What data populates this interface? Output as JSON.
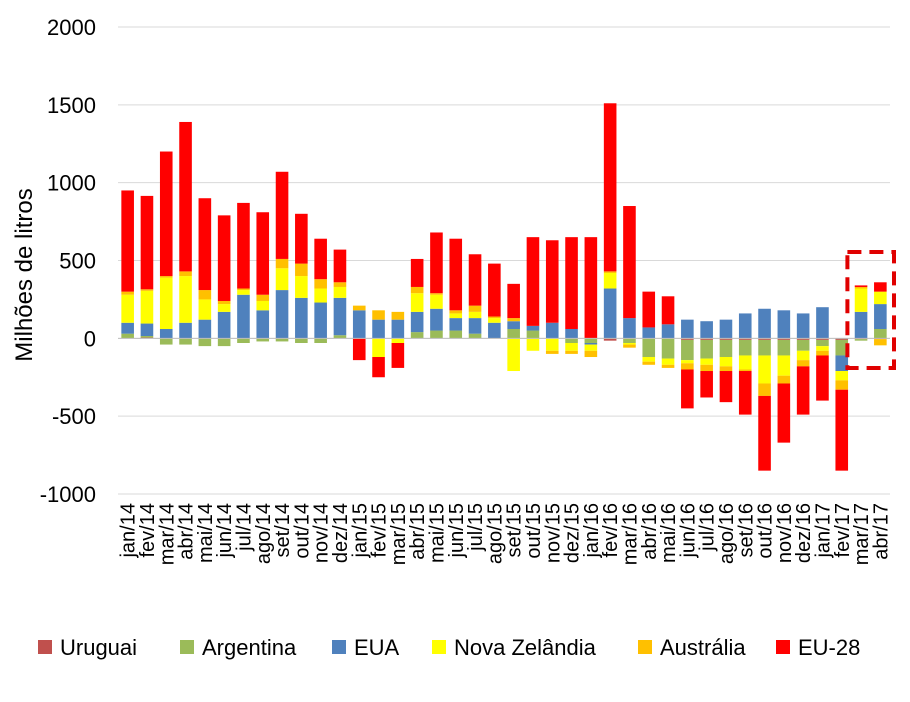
{
  "chart_data": {
    "type": "bar",
    "stacked": true,
    "ylabel": "Milhões de litros",
    "ylim": [
      -1000,
      2000
    ],
    "yticks": [
      2000,
      1500,
      1000,
      500,
      0,
      -500,
      -1000
    ],
    "grid": true,
    "legend_position": "bottom",
    "highlight": {
      "categories": [
        "mar/17",
        "abr/17"
      ],
      "style": "dashed-box",
      "color": "#e00000"
    },
    "categories": [
      "jan/14",
      "fev/14",
      "mar/14",
      "abr/14",
      "mai/14",
      "jun/14",
      "jul/14",
      "ago/14",
      "set/14",
      "out/14",
      "nov/14",
      "dez/14",
      "jan/15",
      "fev/15",
      "mar/15",
      "abr/15",
      "mai/15",
      "jun/15",
      "jul/15",
      "ago/15",
      "set/15",
      "out/15",
      "nov/15",
      "dez/15",
      "jan/16",
      "fev/16",
      "mar/16",
      "abr/16",
      "mai/16",
      "jun/16",
      "jul/16",
      "ago/16",
      "set/16",
      "out/16",
      "nov/16",
      "dez/16",
      "jan/17",
      "fev/17",
      "mar/17",
      "abr/17"
    ],
    "series": [
      {
        "name": "Uruguai",
        "color": "#c0504d",
        "values": [
          0,
          5,
          0,
          0,
          0,
          0,
          0,
          0,
          0,
          0,
          0,
          0,
          0,
          0,
          0,
          0,
          0,
          0,
          0,
          0,
          0,
          0,
          0,
          0,
          0,
          -15,
          0,
          0,
          0,
          -10,
          -10,
          -10,
          -10,
          -10,
          -10,
          -10,
          -10,
          -10,
          -5,
          -5
        ]
      },
      {
        "name": "Argentina",
        "color": "#9bbb59",
        "values": [
          30,
          10,
          -40,
          -40,
          -50,
          -50,
          -30,
          -20,
          -20,
          -30,
          -30,
          20,
          0,
          0,
          0,
          40,
          50,
          50,
          30,
          0,
          60,
          50,
          0,
          -30,
          -30,
          0,
          -30,
          -120,
          -130,
          -130,
          -120,
          -110,
          -100,
          -100,
          -100,
          -70,
          -40,
          -100,
          -10,
          60
        ]
      },
      {
        "name": "EUA",
        "color": "#4f81bd",
        "values": [
          70,
          80,
          60,
          100,
          120,
          170,
          280,
          180,
          310,
          260,
          230,
          240,
          180,
          120,
          120,
          130,
          140,
          80,
          100,
          100,
          50,
          30,
          100,
          60,
          -10,
          320,
          130,
          70,
          90,
          120,
          110,
          120,
          160,
          190,
          180,
          160,
          200,
          -100,
          170,
          160
        ]
      },
      {
        "name": "Nova Zelândia",
        "color": "#ffff00",
        "values": [
          180,
          210,
          330,
          300,
          130,
          50,
          30,
          60,
          140,
          140,
          90,
          70,
          0,
          -120,
          -30,
          120,
          90,
          30,
          40,
          30,
          -210,
          -80,
          -80,
          -50,
          -40,
          100,
          -10,
          -30,
          -40,
          -20,
          -40,
          -60,
          -90,
          -180,
          -130,
          -60,
          -30,
          -60,
          150,
          80
        ]
      },
      {
        "name": "Austrália",
        "color": "#ffc000",
        "values": [
          20,
          10,
          10,
          30,
          60,
          20,
          10,
          40,
          60,
          80,
          60,
          30,
          30,
          60,
          50,
          40,
          10,
          20,
          40,
          10,
          20,
          0,
          -20,
          -20,
          -40,
          10,
          -20,
          -20,
          -20,
          -40,
          -40,
          -30,
          -10,
          -80,
          -50,
          -40,
          -30,
          -60,
          10,
          -40
        ]
      },
      {
        "name": "EU-28",
        "color": "#ff0000",
        "values": [
          650,
          600,
          800,
          960,
          590,
          550,
          550,
          530,
          560,
          320,
          260,
          210,
          -140,
          -130,
          -160,
          180,
          390,
          460,
          330,
          340,
          220,
          570,
          530,
          590,
          650,
          1080,
          720,
          230,
          180,
          -250,
          -170,
          -200,
          -280,
          -480,
          -380,
          -310,
          -290,
          -520,
          10,
          60
        ]
      }
    ]
  },
  "legend": [
    {
      "label": "Uruguai",
      "color": "#c0504d"
    },
    {
      "label": "Argentina",
      "color": "#9bbb59"
    },
    {
      "label": "EUA",
      "color": "#4f81bd"
    },
    {
      "label": "Nova Zelândia",
      "color": "#ffff00"
    },
    {
      "label": "Austrália",
      "color": "#ffc000"
    },
    {
      "label": "EU-28",
      "color": "#ff0000"
    }
  ]
}
